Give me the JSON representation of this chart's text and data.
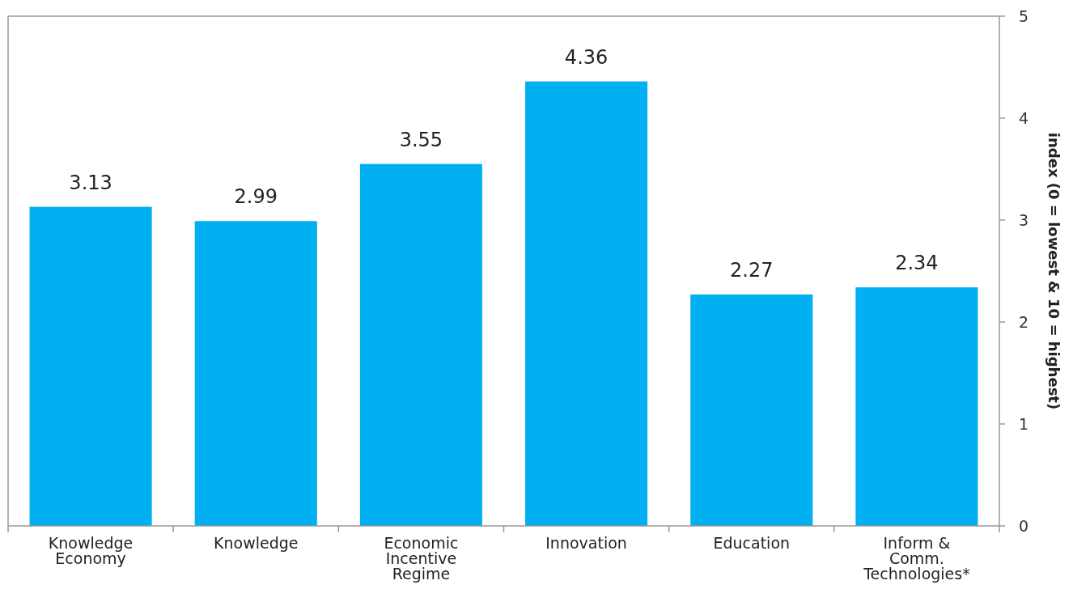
{
  "chart_data": {
    "type": "bar",
    "categories": [
      "Knowledge\nEconomy",
      "Knowledge",
      "Economic\nIncentive\nRegime",
      "Innovation",
      "Education",
      "Inform &\nComm.\nTechnologies*"
    ],
    "values": [
      3.13,
      2.99,
      3.55,
      4.36,
      2.27,
      2.34
    ],
    "color": "#00b0f0",
    "ylim": [
      0,
      5
    ],
    "yticks": [
      0,
      1,
      2,
      3,
      4,
      5
    ],
    "ylabel": "index (0 = lowest & 10 = highest)",
    "data_labels": true
  }
}
